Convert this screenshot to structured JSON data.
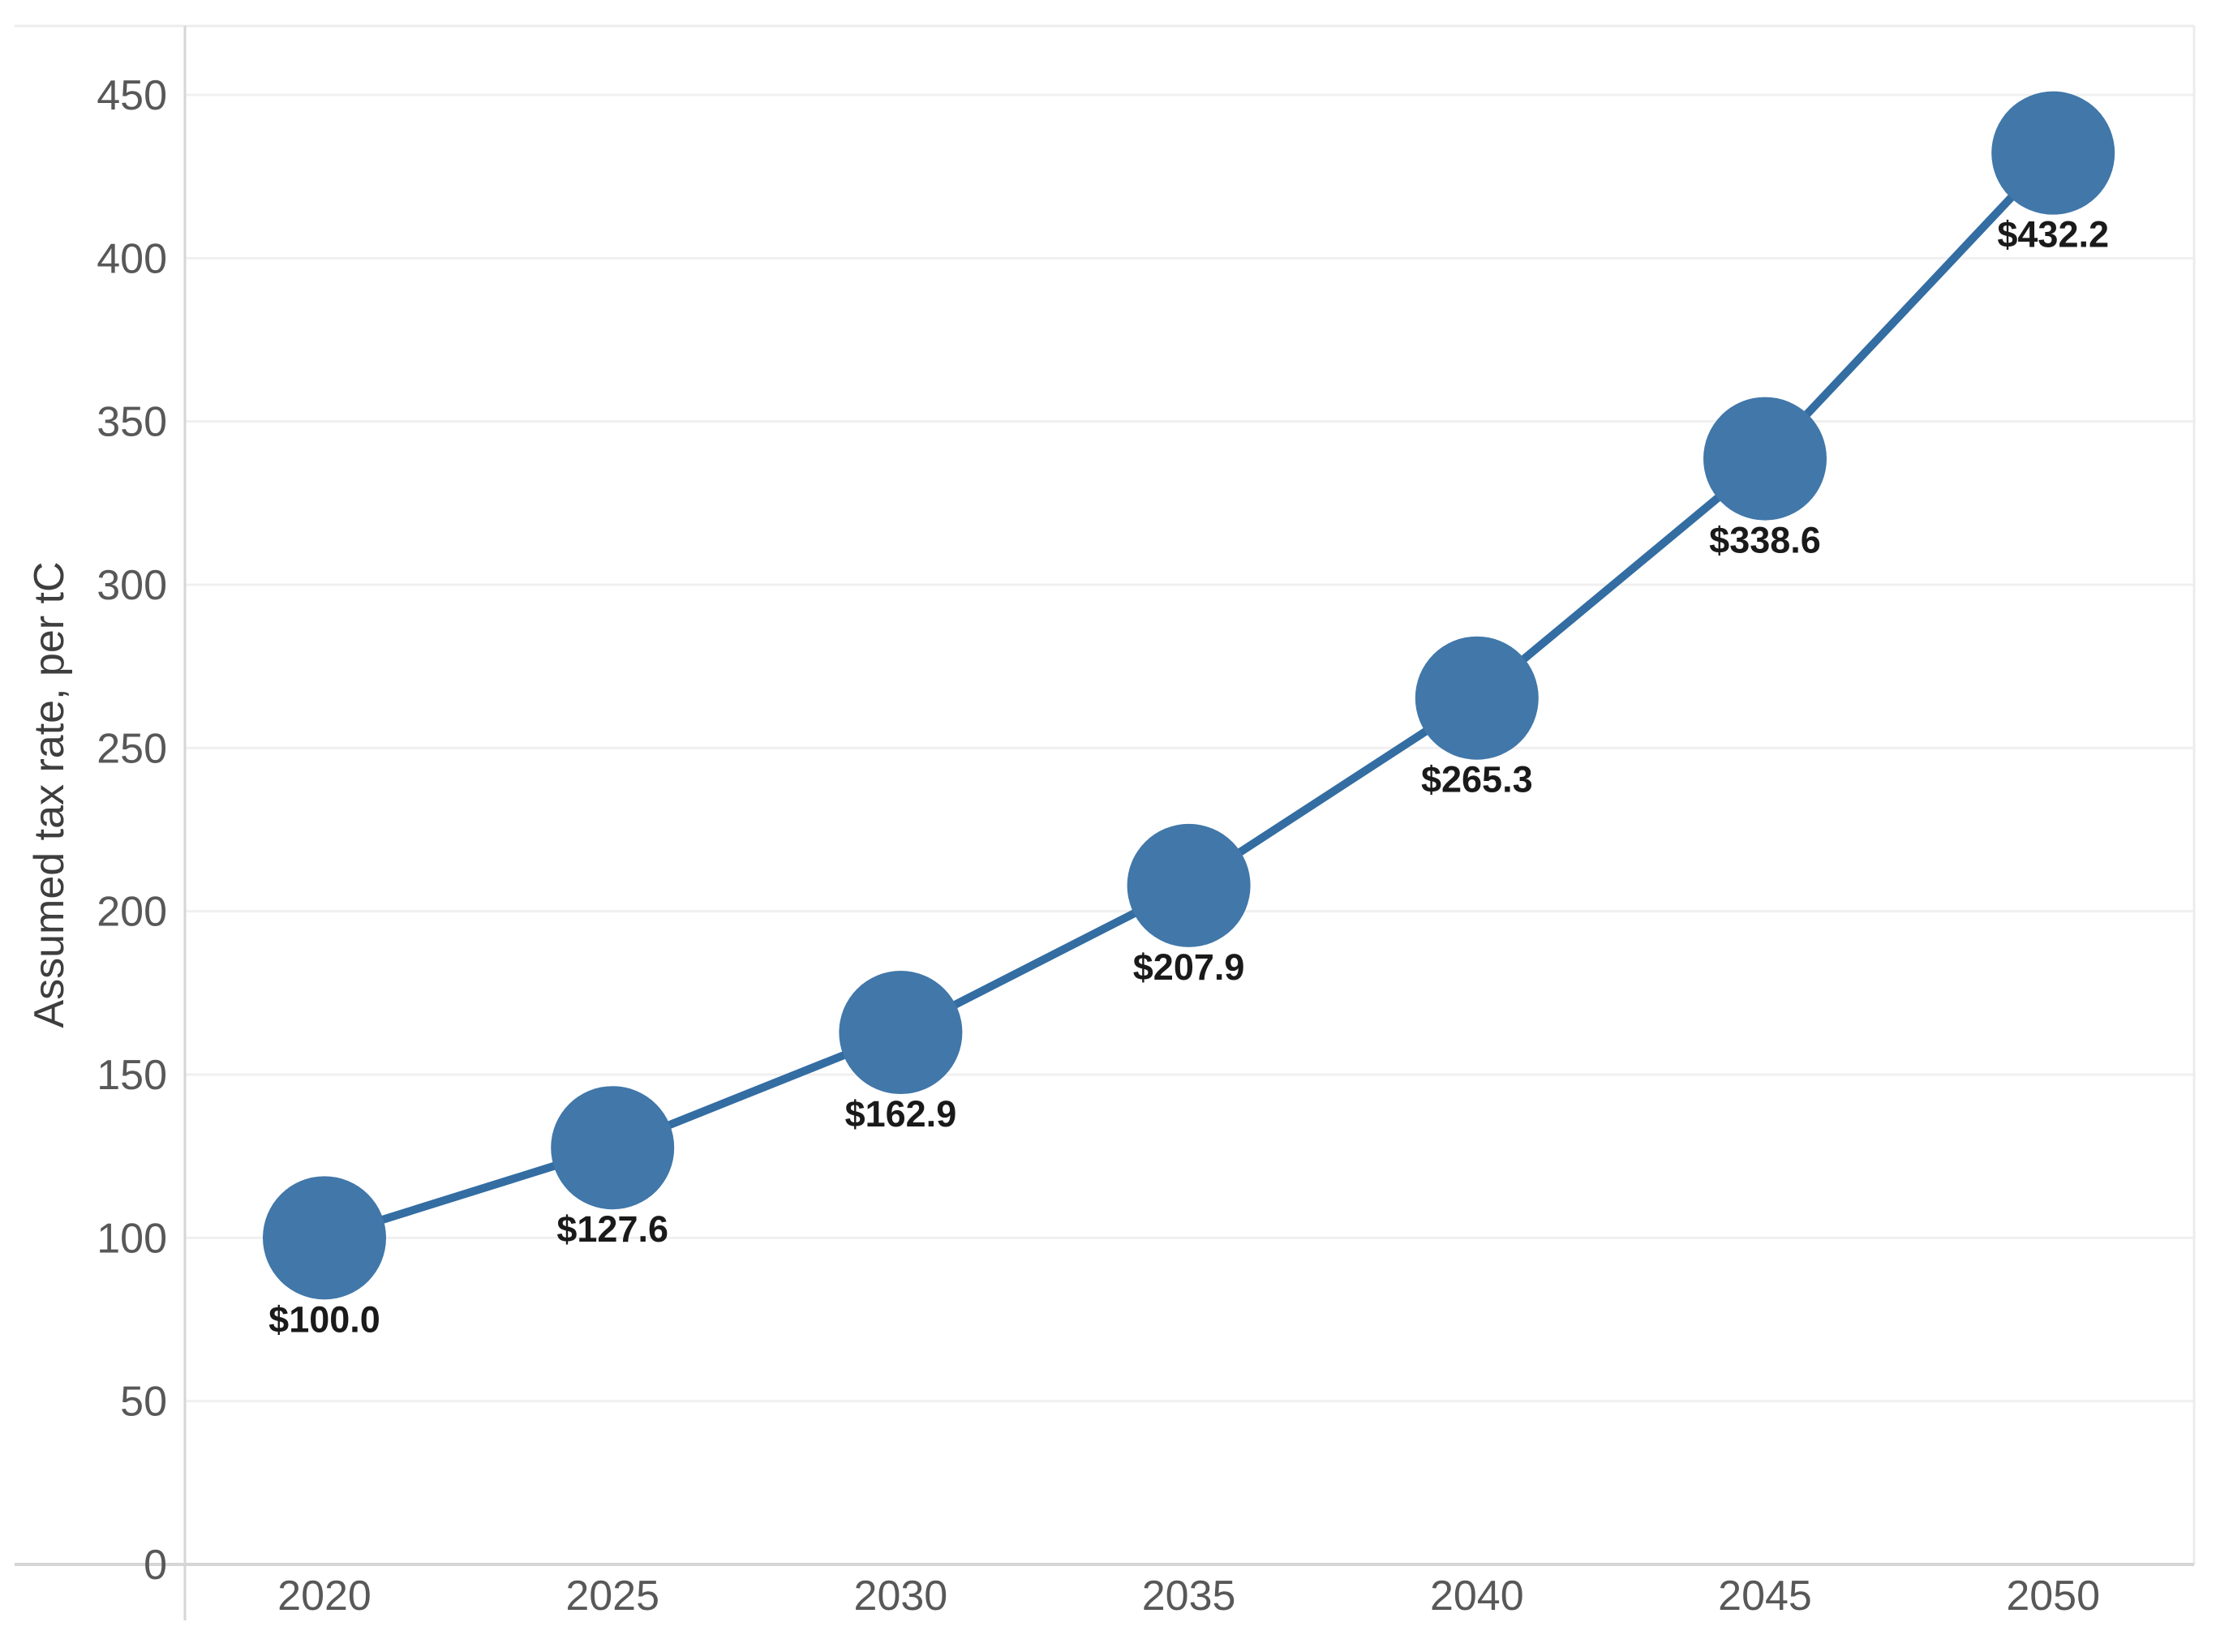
{
  "chart_data": {
    "type": "line",
    "title": "",
    "xlabel": "",
    "ylabel": "Assumed tax rate, per tC",
    "categories": [
      "2020",
      "2025",
      "2030",
      "2035",
      "2040",
      "2045",
      "2050"
    ],
    "x": [
      2020,
      2025,
      2030,
      2035,
      2040,
      2045,
      2050
    ],
    "series": [
      {
        "name": "Assumed tax rate",
        "values": [
          100.0,
          127.6,
          162.9,
          207.9,
          265.3,
          338.6,
          432.2
        ],
        "point_labels": [
          "$100.0",
          "$127.6",
          "$162.9",
          "$207.9",
          "$265.3",
          "$338.6",
          "$432.2"
        ]
      }
    ],
    "ylim": [
      0,
      470
    ],
    "yticks": [
      0,
      50,
      100,
      150,
      200,
      250,
      300,
      350,
      400,
      450
    ],
    "ytick_labels": [
      "0",
      "50",
      "100",
      "150",
      "200",
      "250",
      "300",
      "350",
      "400",
      "450"
    ],
    "grid": "horizontal",
    "legend_position": "none",
    "marker_shape": "circle",
    "colors": {
      "marker": "#4177A9",
      "line": "#336DA2",
      "grid": "#F0F0F0",
      "axis_line": "#D6D6D6",
      "border": "#ECECEC",
      "tick_label": "#585858",
      "axis_title": "#3E3E3E",
      "point_label": "#1A1A1A",
      "background": "#FFFFFF"
    }
  }
}
